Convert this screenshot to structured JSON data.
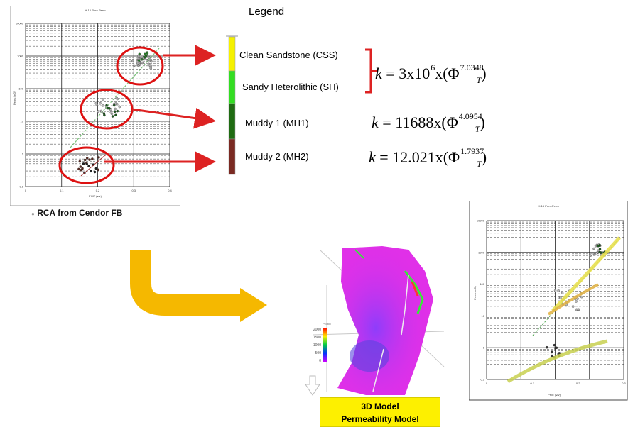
{
  "legend": {
    "title": "Legend",
    "items": [
      {
        "label": "Clean Sandstone (CSS)",
        "color": "#f5f100"
      },
      {
        "label": "Sandy Heterolithic (SH)",
        "color": "#33dd22"
      },
      {
        "label": "Muddy 1 (MH1)",
        "color": "#1f6b12"
      },
      {
        "label": "Muddy 2 (MH2)",
        "color": "#7a2a22"
      }
    ]
  },
  "equations": [
    {
      "lhs": "k",
      "coef": "3x10",
      "coef_exp": "6",
      "rest": "x(Φ",
      "sub": "T",
      "exp": "7.0348",
      "close": ")"
    },
    {
      "lhs": "k",
      "coef": "11688x(Φ",
      "coef_exp": "",
      "rest": "",
      "sub": "T",
      "exp": "4.0954",
      "close": ")"
    },
    {
      "lhs": "k",
      "coef": "12.021x(Φ",
      "coef_exp": "",
      "rest": "",
      "sub": "T",
      "exp": "1.7937",
      "close": ")"
    }
  ],
  "left_chart": {
    "title": "H-16 Poro-Perm",
    "ylabel": "Perm (mD)",
    "xlabel": "PHIT (v/v)",
    "y_ticks": [
      "10000",
      "1000",
      "100",
      "10",
      "1",
      "0.1"
    ],
    "x_ticks": [
      "0",
      "0.1",
      "0.2",
      "0.3",
      "0.4"
    ]
  },
  "right_chart": {
    "title": "H-16 Poro-Perm",
    "ylabel": "Perm (mD)",
    "xlabel": "PHIT (v/v)",
    "y_ticks": [
      "10000",
      "1000",
      "100",
      "10",
      "1",
      "0.1"
    ],
    "x_ticks": [
      "0",
      "0.1",
      "0.2",
      "0.3"
    ]
  },
  "captions": {
    "rca": "RCA from Cendor FB",
    "model_line1": "3D Model",
    "model_line2": "Permeability Model"
  },
  "model": {
    "colorbar_title": "PERM",
    "colorbar_ticks": [
      "2000",
      "1500",
      "1000",
      "500",
      "0"
    ]
  },
  "colors": {
    "arrow_red": "#dd2222",
    "arrow_orange": "#f5b800",
    "circle_red": "#dd1111",
    "model_magenta": "#e030e8"
  }
}
